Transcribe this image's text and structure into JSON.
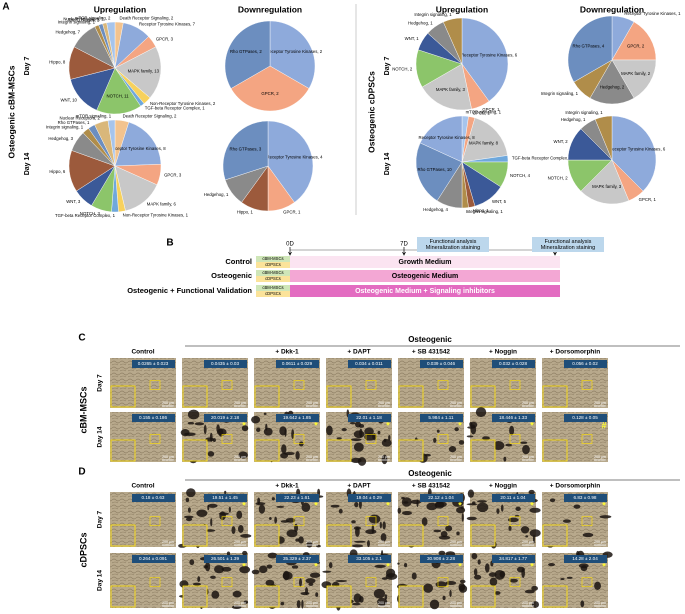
{
  "panel_a": {
    "letter": "A",
    "groups": [
      "Osteogenic cBM-MSCs",
      "Osteogenic cDPSCs"
    ],
    "columns": [
      "Upregulation",
      "Downregulation"
    ],
    "rows": [
      "Day 7",
      "Day 14"
    ]
  },
  "chart_data": [
    {
      "type": "pie",
      "categories": [
        "Death Receptor Signaling, 2",
        "Receptor Tyrosine Kinases, 7",
        "GPCR, 3",
        "MAPK family, 13",
        "Non-Receptor Tyrosine Kinases, 2",
        "TGF-beta Receptor Complex, 1",
        "NOTCH, 11",
        "WNT, 10",
        "Hippo, 8",
        "Hedgehog, 7",
        "Integrin signaling, 1",
        "Rho GTPases, 1",
        "Nuclear Receptors, 1",
        "mTOR signaling, 2"
      ],
      "values": [
        2,
        7,
        3,
        13,
        2,
        1,
        11,
        10,
        8,
        7,
        1,
        1,
        1,
        2
      ],
      "colors": [
        "#f3c38e",
        "#8eaadb",
        "#f4a582",
        "#c8c8c8",
        "#f7d15c",
        "#6fa8dc",
        "#8cc56a",
        "#3b5998",
        "#9c5a3c",
        "#8a8a8a",
        "#b08d4a",
        "#6c8ebf",
        "#d9b77a",
        "#a6c4ec"
      ]
    },
    {
      "type": "pie",
      "categories": [
        "Receptor Tyrosine Kinases, 2",
        "GPCR, 2",
        "Rho GTPases, 2"
      ],
      "values": [
        2,
        2,
        2
      ],
      "colors": [
        "#8eaadb",
        "#f4a582",
        "#6c8ebf"
      ]
    },
    {
      "type": "pie",
      "categories": [
        "Death Receptor Signaling, 2",
        "Receptor Tyrosine Kinases, 8",
        "GPCR, 3",
        "MAPK family, 6",
        "Non-Receptor Tyrosine Kinases, 1",
        "TGF-beta Receptor Complex, 1",
        "NOTCH, 3",
        "WNT, 3",
        "Hippo, 6",
        "Hedgehog, 3",
        "Integrin signaling, 1",
        "Rho GTPases, 1",
        "Nuclear Receptors, 2",
        "mTOR signaling, 1"
      ],
      "values": [
        2,
        8,
        3,
        6,
        1,
        1,
        3,
        3,
        6,
        3,
        1,
        1,
        2,
        1
      ],
      "colors": [
        "#f3c38e",
        "#8eaadb",
        "#f4a582",
        "#c8c8c8",
        "#f7d15c",
        "#6fa8dc",
        "#8cc56a",
        "#3b5998",
        "#9c5a3c",
        "#8a8a8a",
        "#b08d4a",
        "#6c8ebf",
        "#d9b77a",
        "#a6c4ec"
      ]
    },
    {
      "type": "pie",
      "categories": [
        "Receptor Tyrosine Kinases, 4",
        "GPCR, 1",
        "Hippo, 1",
        "Hedgehog, 1",
        "Rho GTPases, 3"
      ],
      "values": [
        4,
        1,
        1,
        1,
        3
      ],
      "colors": [
        "#8eaadb",
        "#f4a582",
        "#9c5a3c",
        "#8a8a8a",
        "#6c8ebf"
      ]
    },
    {
      "type": "pie",
      "categories": [
        "Receptor Tyrosine Kinases, 6",
        "GPCR, 1",
        "MAPK family, 3",
        "NOTCH, 2",
        "WNT, 1",
        "Hedgehog, 1",
        "Integrin signaling, 1"
      ],
      "values": [
        6,
        1,
        3,
        2,
        1,
        1,
        1
      ],
      "colors": [
        "#8eaadb",
        "#f4a582",
        "#c8c8c8",
        "#8cc56a",
        "#3b5998",
        "#8a8a8a",
        "#b08d4a"
      ]
    },
    {
      "type": "pie",
      "categories": [
        "Receptor Tyrosine Kinases, 1",
        "GPCR, 2",
        "MAPK family, 2",
        "Hedgehog, 2",
        "Integrin signaling, 1",
        "Rho GTPases, 4"
      ],
      "values": [
        1,
        2,
        2,
        2,
        1,
        4
      ],
      "colors": [
        "#8eaadb",
        "#f4a582",
        "#c8c8c8",
        "#8a8a8a",
        "#b08d4a",
        "#6c8ebf"
      ]
    },
    {
      "type": "pie",
      "categories": [
        "mTOR signaling, 1",
        "GPCR, 1",
        "MAPK family, 8",
        "TGF-beta Receptor Complex, 1",
        "NOTCH, 4",
        "WNT, 5",
        "Hippo, 1",
        "Integrin signaling, 1",
        "Hedgehog, 4",
        "Rho GTPases, 10",
        "Receptor Tyrosine Kinases, 8"
      ],
      "values": [
        1,
        1,
        8,
        1,
        4,
        5,
        1,
        1,
        4,
        10,
        8
      ],
      "colors": [
        "#a6c4ec",
        "#f4a582",
        "#c8c8c8",
        "#6fa8dc",
        "#8cc56a",
        "#3b5998",
        "#9c5a3c",
        "#b08d4a",
        "#8a8a8a",
        "#6c8ebf",
        "#8eaadb"
      ]
    },
    {
      "type": "pie",
      "categories": [
        "Receptor Tyrosine Kinases, 6",
        "GPCR, 1",
        "MAPK family, 3",
        "NOTCH, 2",
        "WNT, 2",
        "Hedgehog, 1",
        "Integrin signaling, 1"
      ],
      "values": [
        6,
        1,
        3,
        2,
        2,
        1,
        1
      ],
      "colors": [
        "#8eaadb",
        "#f4a582",
        "#c8c8c8",
        "#8cc56a",
        "#3b5998",
        "#8a8a8a",
        "#b08d4a"
      ]
    }
  ],
  "panel_b": {
    "letter": "B",
    "times": [
      "0D",
      "7D",
      "14D"
    ],
    "rows": [
      "Control",
      "Osteogenic",
      "Osteogenic + Functional Validation"
    ],
    "cells": [
      "cBM-MSCs",
      "cDPSCs"
    ],
    "media": [
      "Growth Medium",
      "Osteogenic Medium",
      "Osteogenic Medium + Signaling inhibitors"
    ],
    "analysis": [
      "Functional analysis",
      "Mineralization staining"
    ]
  },
  "panel_c": {
    "letter": "C",
    "side": "cBM-MSCs",
    "group": "Osteogenic",
    "columns": [
      "Control",
      null,
      "+ Dkk-1",
      "+ DAPT",
      "+ SB 431542",
      "+ Noggin",
      "+ Dorsomorphin"
    ],
    "rows": [
      "Day 7",
      "Day 14"
    ],
    "scale_bar": "200 μm",
    "cells": [
      [
        "0.0265 ± 0.023",
        "0.0435 ± 0.03",
        "0.0611 ± 0.029",
        "0.034 ± 0.011",
        "0.039 ± 0.046",
        "0.032 ± 0.028",
        "0.056 ± 0.02"
      ],
      [
        "0.155 ± 0.186",
        "20.019 ± 2.18",
        "19.642 ± 1.85",
        "22.01 ± 1.18",
        "5.984 ± 1.11",
        "18.446 ± 1.33",
        "0.128 ± 0.05"
      ]
    ],
    "marks": [
      [
        null,
        null,
        null,
        null,
        null,
        null,
        null
      ],
      [
        null,
        "*",
        "*",
        "*",
        "*",
        "*",
        "#"
      ]
    ]
  },
  "panel_d": {
    "letter": "D",
    "side": "cDPSCs",
    "group": "Osteogenic",
    "columns": [
      "Control",
      null,
      "+ Dkk-1",
      "+ DAPT",
      "+ SB 431542",
      "+ Noggin",
      "+ Dorsomorphin"
    ],
    "rows": [
      "Day 7",
      "Day 14"
    ],
    "scale_bar": "200 μm",
    "cells": [
      [
        "0.18 ± 0.63",
        "19.51 ± 1.45",
        "22.23 ± 1.61",
        "19.04 ± 0.29",
        "22.12 ± 1.04",
        "20.11 ± 1.04",
        "6.83 ± 0.98"
      ],
      [
        "0.264 ± 0.091",
        "26.501 ± 1.39",
        "35.329 ± 2.37",
        "33.105 ± 2.1",
        "30.908 ± 2.28",
        "34.817 ± 1.77",
        "14.28 ± 2.04"
      ]
    ],
    "marks": [
      [
        null,
        "*",
        "*",
        "*",
        "*",
        "*",
        "*"
      ],
      [
        null,
        "*",
        "*",
        "*",
        "*",
        "*",
        "*"
      ]
    ]
  }
}
